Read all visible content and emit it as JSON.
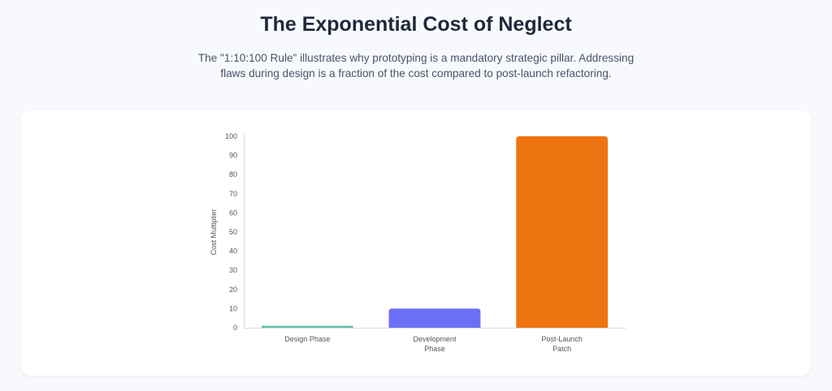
{
  "header": {
    "title": "The Exponential Cost of Neglect",
    "subtitle_line1": "The \"1:10:100 Rule\" illustrates why prototyping is a mandatory strategic pillar. Addressing",
    "subtitle_line2": "flaws during design is a fraction of the cost compared to post-launch refactoring."
  },
  "chart_data": {
    "type": "bar",
    "categories": [
      [
        "Design Phase"
      ],
      [
        "Development",
        "Phase"
      ],
      [
        "Post-Launch",
        "Patch"
      ]
    ],
    "values": [
      1,
      10,
      100
    ],
    "colors": [
      "#5fbfa9",
      "#6b6ff5",
      "#ee7412"
    ],
    "ylabel": "Cost Multiplier",
    "ylim": [
      0,
      100
    ],
    "yticks": [
      0,
      10,
      20,
      30,
      40,
      50,
      60,
      70,
      80,
      90,
      100
    ],
    "grid": false
  }
}
